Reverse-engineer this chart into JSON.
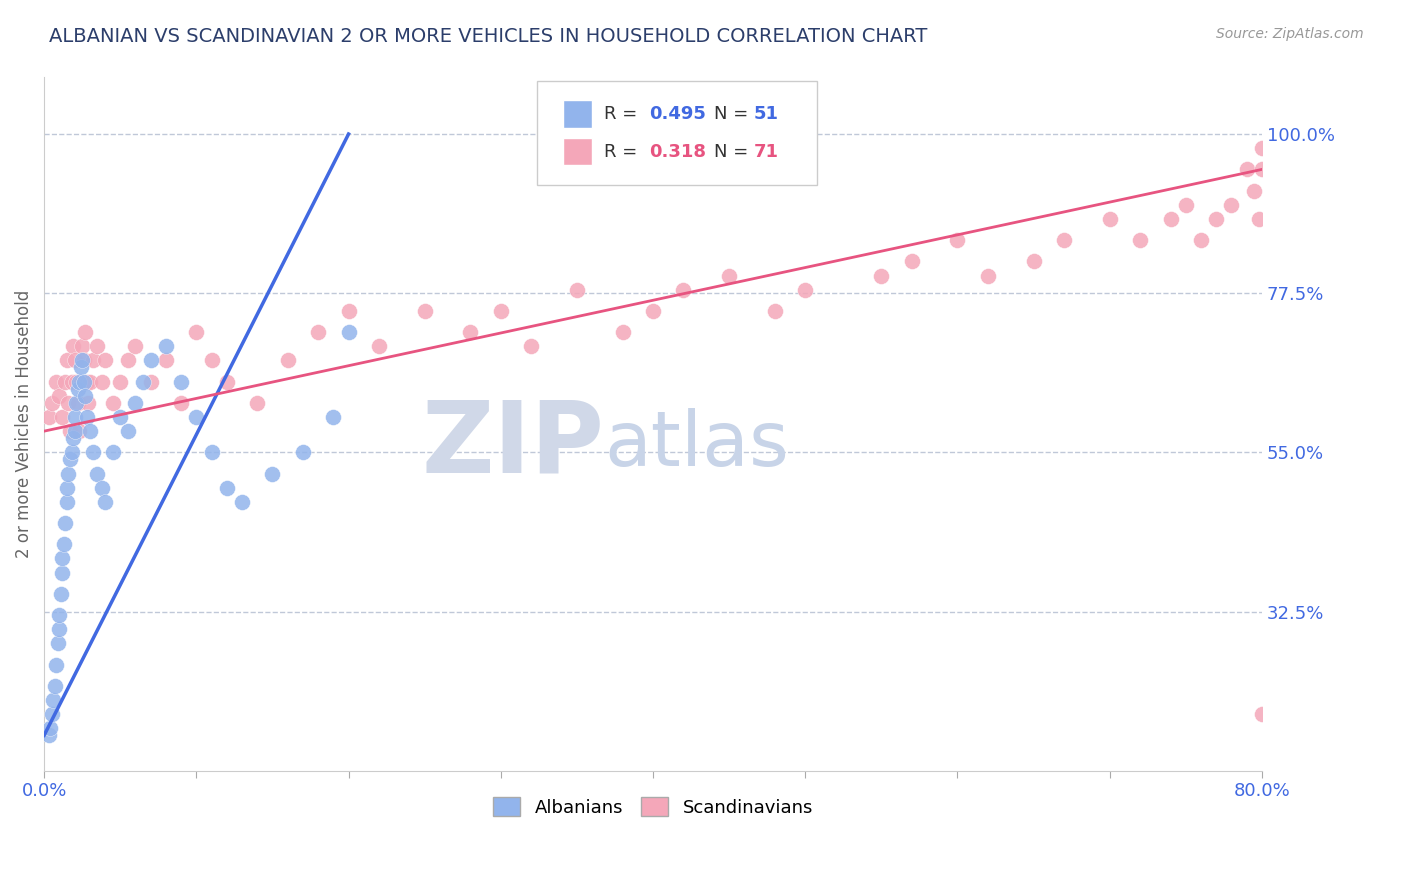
{
  "title": "ALBANIAN VS SCANDINAVIAN 2 OR MORE VEHICLES IN HOUSEHOLD CORRELATION CHART",
  "source": "Source: ZipAtlas.com",
  "ylabel": "2 or more Vehicles in Household",
  "xlim": [
    0.0,
    80.0
  ],
  "ylim": [
    10.0,
    108.0
  ],
  "yticks": [
    32.5,
    55.0,
    77.5,
    100.0
  ],
  "ytick_labels": [
    "32.5%",
    "55.0%",
    "77.5%",
    "100.0%"
  ],
  "xtick_labels_show": [
    "0.0%",
    "80.0%"
  ],
  "albanian_color": "#92b4ec",
  "scandinavian_color": "#f4a7b9",
  "albanian_line_color": "#4169e1",
  "scandinavian_line_color": "#e75480",
  "title_color": "#2c3e6b",
  "axis_color": "#4169e1",
  "grid_color": "#c0c8d8",
  "watermark_zip": "ZIP",
  "watermark_atlas": "atlas",
  "watermark_color": "#d0d8e8",
  "albanian_x": [
    0.3,
    0.4,
    0.5,
    0.6,
    0.7,
    0.8,
    0.9,
    1.0,
    1.0,
    1.1,
    1.2,
    1.2,
    1.3,
    1.4,
    1.5,
    1.5,
    1.6,
    1.7,
    1.8,
    1.9,
    2.0,
    2.0,
    2.1,
    2.2,
    2.3,
    2.4,
    2.5,
    2.6,
    2.7,
    2.8,
    3.0,
    3.2,
    3.5,
    3.8,
    4.0,
    4.5,
    5.0,
    5.5,
    6.0,
    6.5,
    7.0,
    8.0,
    9.0,
    10.0,
    11.0,
    12.0,
    13.0,
    15.0,
    17.0,
    19.0,
    20.0
  ],
  "albanian_y": [
    15.0,
    16.0,
    18.0,
    20.0,
    22.0,
    25.0,
    28.0,
    30.0,
    32.0,
    35.0,
    38.0,
    40.0,
    42.0,
    45.0,
    48.0,
    50.0,
    52.0,
    54.0,
    55.0,
    57.0,
    58.0,
    60.0,
    62.0,
    64.0,
    65.0,
    67.0,
    68.0,
    65.0,
    63.0,
    60.0,
    58.0,
    55.0,
    52.0,
    50.0,
    48.0,
    55.0,
    60.0,
    58.0,
    62.0,
    65.0,
    68.0,
    70.0,
    65.0,
    60.0,
    55.0,
    50.0,
    48.0,
    52.0,
    55.0,
    60.0,
    72.0
  ],
  "scandinavian_x": [
    0.3,
    0.5,
    0.8,
    1.0,
    1.2,
    1.4,
    1.5,
    1.6,
    1.7,
    1.8,
    1.9,
    2.0,
    2.1,
    2.2,
    2.3,
    2.4,
    2.5,
    2.6,
    2.7,
    2.8,
    2.9,
    3.0,
    3.2,
    3.5,
    3.8,
    4.0,
    4.5,
    5.0,
    5.5,
    6.0,
    7.0,
    8.0,
    9.0,
    10.0,
    11.0,
    12.0,
    14.0,
    16.0,
    18.0,
    20.0,
    22.0,
    25.0,
    28.0,
    30.0,
    32.0,
    35.0,
    38.0,
    40.0,
    42.0,
    45.0,
    48.0,
    50.0,
    55.0,
    57.0,
    60.0,
    62.0,
    65.0,
    67.0,
    70.0,
    72.0,
    74.0,
    75.0,
    76.0,
    77.0,
    78.0,
    79.0,
    79.5,
    79.8,
    80.0,
    80.0,
    80.0
  ],
  "scandinavian_y": [
    60.0,
    62.0,
    65.0,
    63.0,
    60.0,
    65.0,
    68.0,
    62.0,
    58.0,
    65.0,
    70.0,
    68.0,
    65.0,
    62.0,
    58.0,
    65.0,
    70.0,
    68.0,
    72.0,
    65.0,
    62.0,
    65.0,
    68.0,
    70.0,
    65.0,
    68.0,
    62.0,
    65.0,
    68.0,
    70.0,
    65.0,
    68.0,
    62.0,
    72.0,
    68.0,
    65.0,
    62.0,
    68.0,
    72.0,
    75.0,
    70.0,
    75.0,
    72.0,
    75.0,
    70.0,
    78.0,
    72.0,
    75.0,
    78.0,
    80.0,
    75.0,
    78.0,
    80.0,
    82.0,
    85.0,
    80.0,
    82.0,
    85.0,
    88.0,
    85.0,
    88.0,
    90.0,
    85.0,
    88.0,
    90.0,
    95.0,
    92.0,
    88.0,
    98.0,
    95.0,
    18.0
  ]
}
